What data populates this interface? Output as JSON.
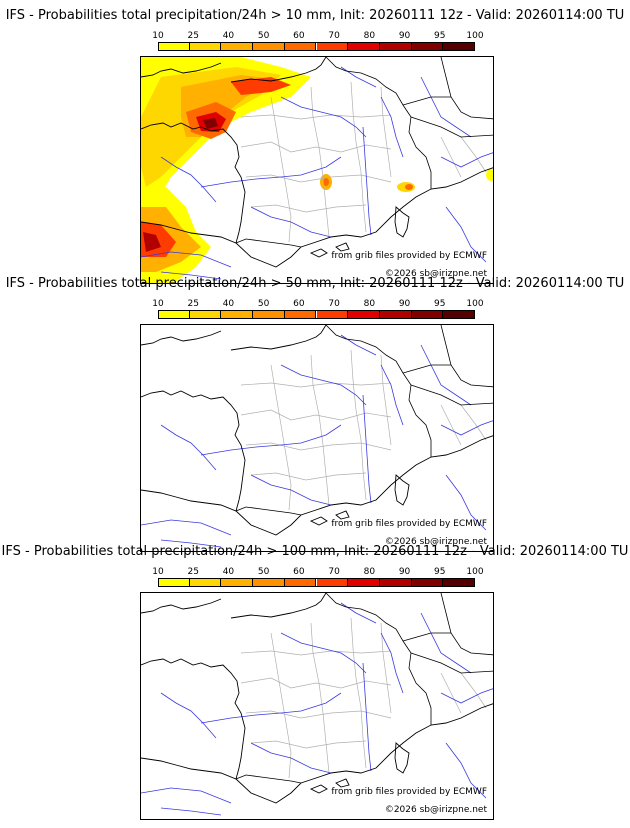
{
  "legend": {
    "ticks": [
      "10",
      "25",
      "40",
      "50",
      "60",
      "70",
      "80",
      "90",
      "95",
      "100"
    ],
    "colors": [
      "#ffff00",
      "#ffd700",
      "#ffb000",
      "#ff9000",
      "#ff6a00",
      "#ff3c00",
      "#e00000",
      "#b00000",
      "#800000",
      "#550000"
    ]
  },
  "panels": [
    {
      "title": "IFS - Probabilities total precipitation/24h > 10 mm, Init: 20260111 12z - Valid: 20260114:00 TU",
      "credit_source": "from grib files provided by ECMWF",
      "credit_copyright": "©2026 sb@irizpne.net",
      "has_precip": true
    },
    {
      "title": "IFS - Probabilities total precipitation/24h > 50 mm, Init: 20260111 12z - Valid: 20260114:00 TU",
      "credit_source": "from grib files provided by ECMWF",
      "credit_copyright": "©2026 sb@irizpne.net",
      "has_precip": false
    },
    {
      "title": "IFS - Probabilities total precipitation/24h > 100 mm, Init: 20260111 12z - Valid: 20260114:00 TU",
      "credit_source": "from grib files provided by ECMWF",
      "credit_copyright": "©2026 sb@irizpne.net",
      "has_precip": false
    }
  ]
}
